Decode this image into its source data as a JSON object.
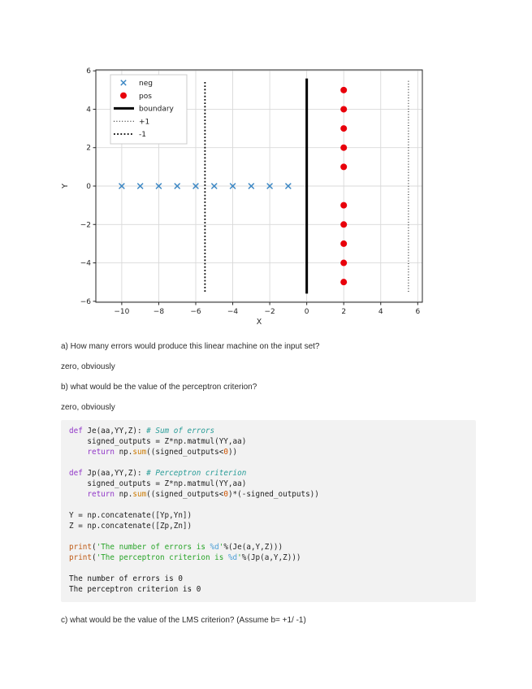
{
  "questions": {
    "q_a": "a) How many errors would produce this linear machine on the input set?",
    "a_a": "zero, obviously",
    "q_b": "b) what would be the value of the perceptron criterion?",
    "a_b": "zero, obviously",
    "q_c": "c) what would be the value of the LMS criterion? (Assume b= +1/ -1)"
  },
  "chart_data": {
    "type": "scatter",
    "title": "",
    "xlabel": "X",
    "ylabel": "Y",
    "xlim": [
      -11.4,
      6.25
    ],
    "ylim": [
      -6.05,
      6.05
    ],
    "xticks": [
      -10,
      -8,
      -6,
      -4,
      -2,
      0,
      2,
      4,
      6
    ],
    "yticks": [
      -6,
      -4,
      -2,
      0,
      2,
      4,
      6
    ],
    "grid": true,
    "legend_position": "upper-left",
    "series": [
      {
        "name": "neg",
        "kind": "scatter",
        "marker": "x",
        "color": "#3b87c4",
        "points": [
          [
            -10,
            0
          ],
          [
            -9,
            0
          ],
          [
            -8,
            0
          ],
          [
            -7,
            0
          ],
          [
            -6,
            0
          ],
          [
            -5,
            0
          ],
          [
            -4,
            0
          ],
          [
            -3,
            0
          ],
          [
            -2,
            0
          ],
          [
            -1,
            0
          ]
        ]
      },
      {
        "name": "pos",
        "kind": "scatter",
        "marker": "dot",
        "color": "#e8000b",
        "points": [
          [
            2,
            5
          ],
          [
            2,
            4
          ],
          [
            2,
            3
          ],
          [
            2,
            2
          ],
          [
            2,
            1
          ],
          [
            2,
            -1
          ],
          [
            2,
            -2
          ],
          [
            2,
            -3
          ],
          [
            2,
            -4
          ],
          [
            2,
            -5
          ]
        ]
      },
      {
        "name": "boundary",
        "kind": "vline",
        "x": 0,
        "y_range": [
          -5.6,
          5.6
        ],
        "style": "solid",
        "width": 3,
        "color": "#000000"
      },
      {
        "name": "+1",
        "kind": "vline",
        "x": 5.5,
        "y_range": [
          -5.5,
          5.5
        ],
        "style": "dotted",
        "width": 1.0,
        "color": "#000000"
      },
      {
        "name": "-1",
        "kind": "vline",
        "x": -5.5,
        "y_range": [
          -5.5,
          5.5
        ],
        "style": "dotted",
        "width": 1.8,
        "color": "#000000"
      }
    ],
    "legend": [
      {
        "label": "neg",
        "sample": "x",
        "color": "#3b87c4"
      },
      {
        "label": "pos",
        "sample": "dot",
        "color": "#e8000b"
      },
      {
        "label": "boundary",
        "sample": "solid",
        "color": "#000000"
      },
      {
        "label": "+1",
        "sample": "dotted-thin",
        "color": "#000000"
      },
      {
        "label": "-1",
        "sample": "dotted-thick",
        "color": "#000000"
      }
    ],
    "colors": {
      "grid": "#d9d9d9",
      "spine": "#262626",
      "tick_label": "#262626"
    }
  },
  "code": {
    "lines": [
      [
        [
          "kw",
          "def"
        ],
        [
          "pl",
          " Je(aa,YY,Z): "
        ],
        [
          "cm",
          "# Sum of errors"
        ]
      ],
      [
        [
          "pl",
          "    signed_outputs = Z*np.matmul(YY,aa)"
        ]
      ],
      [
        [
          "pl",
          "    "
        ],
        [
          "kw",
          "return"
        ],
        [
          "pl",
          " np."
        ],
        [
          "bi",
          "sum"
        ],
        [
          "pl",
          "((signed_outputs<"
        ],
        [
          "num",
          "0"
        ],
        [
          "pl",
          "))"
        ]
      ],
      [],
      [
        [
          "kw",
          "def"
        ],
        [
          "pl",
          " Jp(aa,YY,Z): "
        ],
        [
          "cm",
          "# Perceptron criterion"
        ]
      ],
      [
        [
          "pl",
          "    signed_outputs = Z*np.matmul(YY,aa)"
        ]
      ],
      [
        [
          "pl",
          "    "
        ],
        [
          "kw",
          "return"
        ],
        [
          "pl",
          " np."
        ],
        [
          "bi",
          "sum"
        ],
        [
          "pl",
          "((signed_outputs<"
        ],
        [
          "num",
          "0"
        ],
        [
          "pl",
          ")*(-signed_outputs))"
        ]
      ],
      [],
      [
        [
          "pl",
          "Y = np.concatenate([Yp,Yn])"
        ]
      ],
      [
        [
          "pl",
          "Z = np.concatenate([Zp,Zn])"
        ]
      ],
      [],
      [
        [
          "pr",
          "print"
        ],
        [
          "pl",
          "("
        ],
        [
          "str",
          "'The number of errors is "
        ],
        [
          "fmt",
          "%d"
        ],
        [
          "str",
          "'"
        ],
        [
          "pl",
          "%(Je(a,Y,Z)))"
        ]
      ],
      [
        [
          "pr",
          "print"
        ],
        [
          "pl",
          "("
        ],
        [
          "str",
          "'The perceptron criterion is "
        ],
        [
          "fmt",
          "%d"
        ],
        [
          "str",
          "'"
        ],
        [
          "pl",
          "%(Jp(a,Y,Z)))"
        ]
      ],
      []
    ],
    "output": [
      "The number of errors is 0",
      "The perceptron criterion is 0"
    ]
  }
}
